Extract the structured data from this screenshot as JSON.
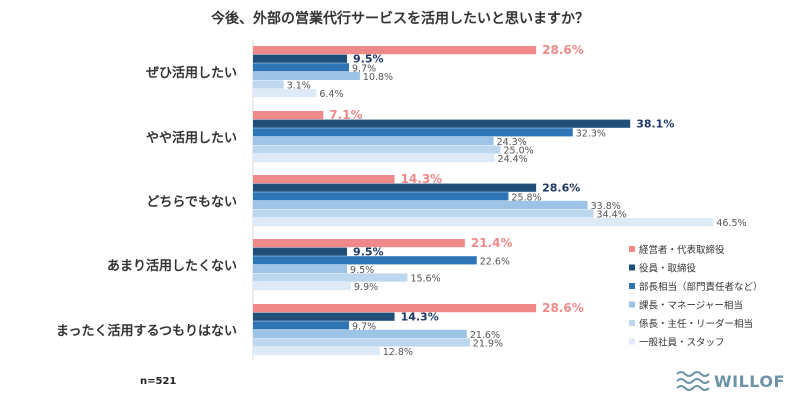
{
  "chart_data": {
    "type": "bar",
    "orientation": "horizontal",
    "title": "今後、外部の営業代行サービスを活用したいと思いますか？",
    "categories": [
      "ぜひ活用したい",
      "やや活用したい",
      "どちらでもない",
      "あまり活用したくない",
      "まったく活用するつもりはない"
    ],
    "series": [
      {
        "name": "経営者・代表取締役",
        "color": "#f08a8a",
        "label_color": "#f08a8a",
        "values": [
          28.6,
          7.1,
          14.3,
          21.4,
          28.6
        ]
      },
      {
        "name": "役員・取締役",
        "color": "#1f4e79",
        "label_color": "#1f3864",
        "values": [
          9.5,
          38.1,
          28.6,
          9.5,
          14.3
        ]
      },
      {
        "name": "部長相当（部門責任者など）",
        "color": "#2e75b6",
        "label_color": "#555555",
        "values": [
          9.7,
          32.3,
          25.8,
          22.6,
          9.7
        ]
      },
      {
        "name": "課長・マネージャー相当",
        "color": "#9dc3e6",
        "label_color": "#555555",
        "values": [
          10.8,
          24.3,
          33.8,
          9.5,
          21.6
        ]
      },
      {
        "name": "係長・主任・リーダー相当",
        "color": "#bdd7ee",
        "label_color": "#555555",
        "values": [
          3.1,
          25.0,
          34.4,
          15.6,
          21.9
        ]
      },
      {
        "name": "一般社員・スタッフ",
        "color": "#deebf7",
        "label_color": "#555555",
        "values": [
          6.4,
          24.4,
          46.5,
          9.9,
          12.8
        ]
      }
    ],
    "value_suffix": "%",
    "xlim": [
      0,
      50
    ],
    "grid": false,
    "legend": "bottom-right"
  },
  "note": "n=521",
  "logo": "WILLOF"
}
